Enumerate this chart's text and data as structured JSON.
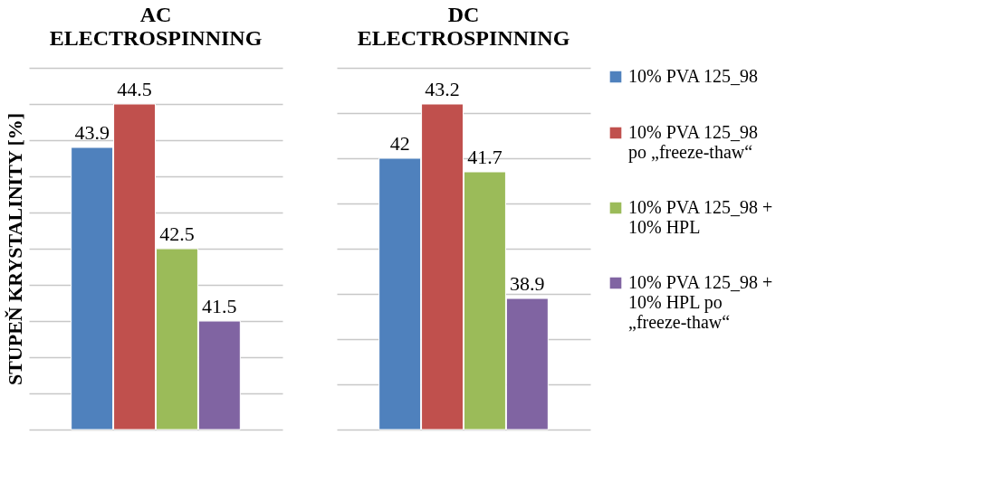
{
  "chart_data": [
    {
      "type": "bar",
      "title": "AC ELECTROSPINNING",
      "ylabel": "STUPEŇ KRYSTALINITY [%]",
      "categories": [
        null
      ],
      "ylim": [
        40,
        45
      ],
      "yticks": [
        {
          "value": 40,
          "label": null
        },
        {
          "value": 40.5,
          "label": null
        },
        {
          "value": 41,
          "label": null
        },
        {
          "value": 41.5,
          "label": null
        },
        {
          "value": 42,
          "label": null
        },
        {
          "value": 42.5,
          "label": null
        },
        {
          "value": 43,
          "label": null
        },
        {
          "value": 43.5,
          "label": null
        },
        {
          "value": 44,
          "label": null
        },
        {
          "value": 44.5,
          "label": null
        },
        {
          "value": 45,
          "label": null
        }
      ],
      "grid": "y",
      "tick_labels": false,
      "data_labels": true,
      "legend": "right",
      "series": [
        {
          "name": "10% PVA 125_98",
          "color": "#4f81bd",
          "values": [
            43.9
          ]
        },
        {
          "name": "10% PVA 125_98 po „freeze-thaw“",
          "color": "#c0504d",
          "values": [
            44.5
          ]
        },
        {
          "name": "10% PVA 125_98 + 10% HPL",
          "color": "#9bbb59",
          "values": [
            42.5
          ]
        },
        {
          "name": "10% PVA 125_98 + 10% HPL po „freeze-thaw“",
          "color": "#8064a2",
          "values": [
            41.5
          ]
        }
      ]
    },
    {
      "type": "bar",
      "title": "DC ELECTROSPINNING",
      "categories": [
        null
      ],
      "ylim": [
        36,
        44
      ],
      "yticks": [
        {
          "value": 36,
          "label": null
        },
        {
          "value": 37,
          "label": null
        },
        {
          "value": 38,
          "label": null
        },
        {
          "value": 39,
          "label": null
        },
        {
          "value": 40,
          "label": null
        },
        {
          "value": 41,
          "label": null
        },
        {
          "value": 42,
          "label": null
        },
        {
          "value": 43,
          "label": null
        },
        {
          "value": 44,
          "label": null
        }
      ],
      "grid": "y",
      "tick_labels": false,
      "data_labels": true,
      "legend": "right",
      "series": [
        {
          "name": "10% PVA 125_98",
          "color": "#4f81bd",
          "values": [
            42
          ]
        },
        {
          "name": "10% PVA 125_98 po „freeze-thaw“",
          "color": "#c0504d",
          "values": [
            43.2
          ]
        },
        {
          "name": "10% PVA 125_98 + 10% HPL",
          "color": "#9bbb59",
          "values": [
            41.7
          ]
        },
        {
          "name": "10% PVA 125_98 + 10% HPL po „freeze-thaw“",
          "color": "#8064a2",
          "values": [
            38.9
          ]
        }
      ]
    }
  ]
}
